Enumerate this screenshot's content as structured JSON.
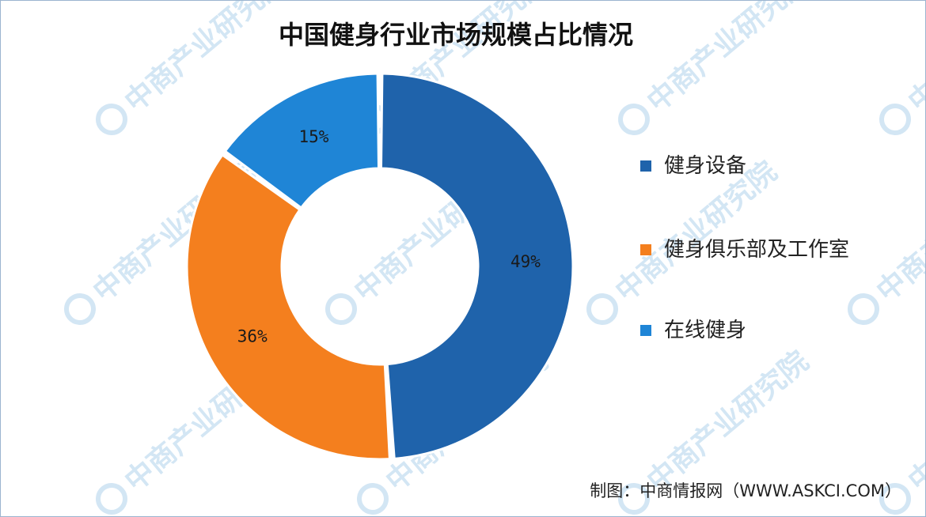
{
  "chart_data": {
    "type": "pie",
    "title": "中国健身行业市场规模占比情况",
    "donut": true,
    "legend_position": "right",
    "slices": [
      {
        "label": "健身设备",
        "value": 49,
        "display": "49%",
        "color": "#1f63ab"
      },
      {
        "label": "健身俱乐部及工作室",
        "value": 36,
        "display": "36%",
        "color": "#f47f1e"
      },
      {
        "label": "在线健身",
        "value": 15,
        "display": "15%",
        "color": "#1f85d6"
      }
    ]
  },
  "footer": {
    "source_label": "制图：",
    "source_name": "中商情报网",
    "source_url": "（WWW.ASKCI.COM）"
  },
  "watermark": {
    "text": "中商产业研究院",
    "color": "#d3e6f4",
    "icon": "askci-logo-icon"
  }
}
